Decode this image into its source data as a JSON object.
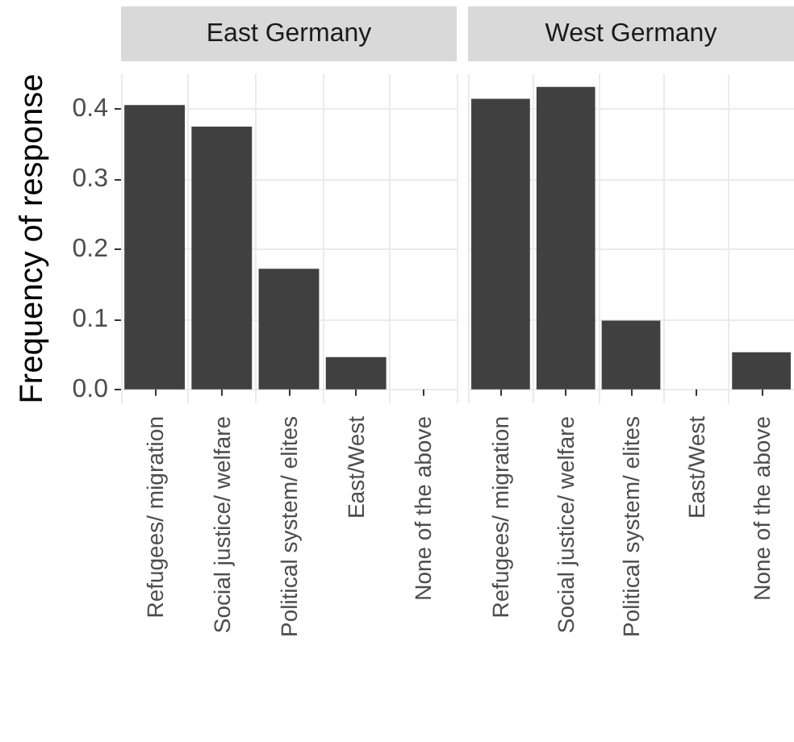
{
  "chart_data": [
    {
      "type": "bar",
      "title": "East Germany",
      "ylabel": "Frequency of response",
      "categories": [
        "Refugees/ migration",
        "Social justice/ welfare",
        "Political system/ elites",
        "East/West",
        "None of the above"
      ],
      "values": [
        0.406,
        0.375,
        0.172,
        0.046,
        0
      ],
      "color": "#404040",
      "ylim": [
        -0.02,
        0.45
      ],
      "yticks": [
        {
          "value": 0,
          "label": "0.0"
        },
        0.1,
        0.2,
        0.3,
        0.4
      ],
      "grid": true
    },
    {
      "type": "bar",
      "title": "West Germany",
      "categories": [
        "Refugees/ migration",
        "Social justice/ welfare",
        "Political system/ elites",
        "East/West",
        "None of the above"
      ],
      "values": [
        0.415,
        0.432,
        0.098,
        0,
        0.053
      ],
      "color": "#404040",
      "ylim": [
        -0.02,
        0.45
      ],
      "yticks": [
        0,
        0.1,
        0.2,
        0.3,
        0.4
      ],
      "grid": true,
      "tick_labels": "x"
    }
  ]
}
